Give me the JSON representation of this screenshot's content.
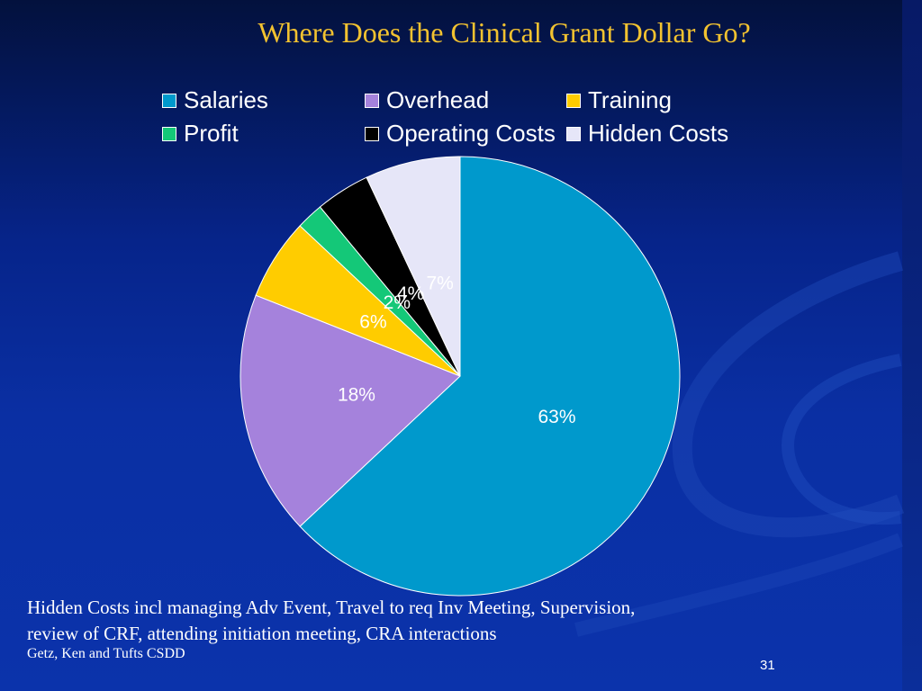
{
  "chart_data": {
    "type": "pie",
    "title": "Where Does the Clinical Grant Dollar Go?",
    "slices": [
      {
        "label": "Salaries",
        "value": 63,
        "display": "63%",
        "color": "#0099cc"
      },
      {
        "label": "Overhead",
        "value": 18,
        "display": "18%",
        "color": "#a582dc"
      },
      {
        "label": "Training",
        "value": 6,
        "display": "6%",
        "color": "#ffcc00"
      },
      {
        "label": "Profit",
        "value": 2,
        "display": "2%",
        "color": "#14c878"
      },
      {
        "label": "Operating Costs",
        "value": 4,
        "display": "4%",
        "color": "#000000"
      },
      {
        "label": "Hidden Costs",
        "value": 7,
        "display": "7%",
        "color": "#e6e6f8"
      }
    ],
    "legend_position": "top",
    "label_color": "#ffffff"
  },
  "footer": {
    "note_line1": "Hidden Costs incl managing Adv Event, Travel to req Inv Meeting, Supervision,",
    "note_line2": "review of CRF, attending initiation meeting, CRA interactions",
    "citation": "Getz, Ken and Tufts CSDD",
    "page_number": "31"
  }
}
